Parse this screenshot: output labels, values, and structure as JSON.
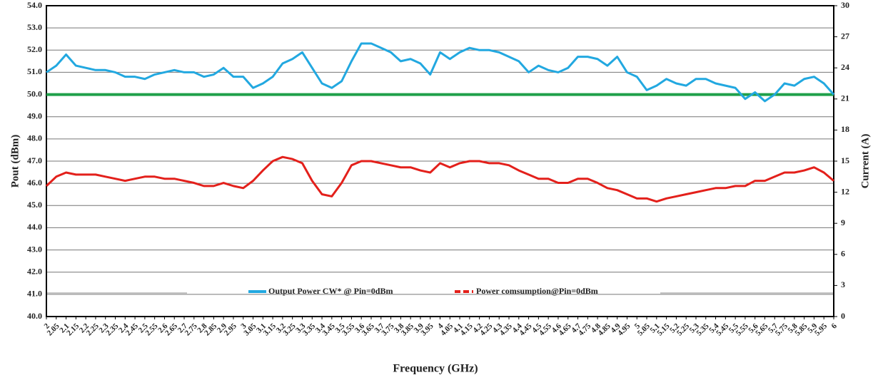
{
  "chart_data": {
    "type": "line",
    "xlabel": "Frequency (GHz)",
    "ylabel": "Pout (dBm)",
    "y2label": "Current (A)",
    "x": [
      2,
      2.05,
      2.1,
      2.15,
      2.2,
      2.25,
      2.3,
      2.35,
      2.4,
      2.45,
      2.5,
      2.55,
      2.6,
      2.65,
      2.7,
      2.75,
      2.8,
      2.85,
      2.9,
      2.95,
      3,
      3.05,
      3.1,
      3.15,
      3.2,
      3.25,
      3.3,
      3.35,
      3.4,
      3.45,
      3.5,
      3.55,
      3.6,
      3.65,
      3.7,
      3.75,
      3.8,
      3.85,
      3.9,
      3.95,
      4,
      4.05,
      4.1,
      4.15,
      4.2,
      4.25,
      4.3,
      4.35,
      4.4,
      4.45,
      4.5,
      4.55,
      4.6,
      4.65,
      4.7,
      4.75,
      4.8,
      4.85,
      4.9,
      4.95,
      5,
      5.05,
      5.1,
      5.15,
      5.2,
      5.25,
      5.3,
      5.35,
      5.4,
      5.45,
      5.5,
      5.55,
      5.6,
      5.65,
      5.7,
      5.75,
      5.8,
      5.85,
      5.9,
      5.95,
      6
    ],
    "xlim": [
      2,
      6
    ],
    "xticks": [
      2,
      2.05,
      2.1,
      2.15,
      2.2,
      2.25,
      2.3,
      2.35,
      2.4,
      2.45,
      2.5,
      2.55,
      2.6,
      2.65,
      2.7,
      2.75,
      2.8,
      2.85,
      2.9,
      2.95,
      3,
      3.05,
      3.1,
      3.15,
      3.2,
      3.25,
      3.3,
      3.35,
      3.4,
      3.45,
      3.5,
      3.55,
      3.6,
      3.65,
      3.7,
      3.75,
      3.8,
      3.85,
      3.9,
      3.95,
      4,
      4.05,
      4.1,
      4.15,
      4.2,
      4.25,
      4.3,
      4.35,
      4.4,
      4.45,
      4.5,
      4.55,
      4.6,
      4.65,
      4.7,
      4.75,
      4.8,
      4.85,
      4.9,
      4.95,
      5,
      5.05,
      5.1,
      5.15,
      5.2,
      5.25,
      5.3,
      5.35,
      5.4,
      5.45,
      5.5,
      5.55,
      5.6,
      5.65,
      5.7,
      5.75,
      5.8,
      5.85,
      5.9,
      5.95,
      6
    ],
    "ylim": [
      40,
      54
    ],
    "yticks": [
      {
        "value": 40,
        "label": "40.0"
      },
      {
        "value": 41,
        "label": "41.0"
      },
      {
        "value": 42,
        "label": "42.0"
      },
      {
        "value": 43,
        "label": "43.0"
      },
      {
        "value": 44,
        "label": "44.0"
      },
      {
        "value": 45,
        "label": "45.0"
      },
      {
        "value": 46,
        "label": "46.0"
      },
      {
        "value": 47,
        "label": "47.0"
      },
      {
        "value": 48,
        "label": "48.0"
      },
      {
        "value": 49,
        "label": "49.0"
      },
      {
        "value": 50,
        "label": "50.0"
      },
      {
        "value": 51,
        "label": "51.0"
      },
      {
        "value": 52,
        "label": "52.0"
      },
      {
        "value": 53,
        "label": "53.0"
      },
      {
        "value": 54,
        "label": "54.0"
      }
    ],
    "y2lim": [
      0,
      30
    ],
    "y2ticks": [
      0,
      3,
      6,
      9,
      12,
      15,
      18,
      21,
      24,
      27,
      30
    ],
    "grid": true,
    "reference": {
      "value": 50,
      "color": "#1fa04a"
    },
    "series": [
      {
        "name": "Output Power CW* @ Pin=0dBm",
        "color": "#22a8e0",
        "values": [
          51.0,
          51.3,
          51.8,
          51.3,
          51.2,
          51.1,
          51.1,
          51.0,
          50.8,
          50.8,
          50.7,
          50.9,
          51.0,
          51.1,
          51.0,
          51.0,
          50.8,
          50.9,
          51.2,
          50.8,
          50.8,
          50.3,
          50.5,
          50.8,
          51.4,
          51.6,
          51.9,
          51.2,
          50.5,
          50.3,
          50.6,
          51.5,
          52.3,
          52.3,
          52.1,
          51.9,
          51.5,
          51.6,
          51.4,
          50.9,
          51.9,
          51.6,
          51.9,
          52.1,
          52.0,
          52.0,
          51.9,
          51.7,
          51.5,
          51.0,
          51.3,
          51.1,
          51.0,
          51.2,
          51.7,
          51.7,
          51.6,
          51.3,
          51.7,
          51.0,
          50.8,
          50.2,
          50.4,
          50.7,
          50.5,
          50.4,
          50.7,
          50.7,
          50.5,
          50.4,
          50.3,
          49.8,
          50.1,
          49.7,
          50.0,
          50.5,
          50.4,
          50.7,
          50.8,
          50.5,
          50.0
        ]
      },
      {
        "name": "Power comsumption@Pin=0dBm",
        "color": "#e3201b",
        "axis": "y2",
        "values": [
          12.6,
          13.5,
          13.9,
          13.7,
          13.7,
          13.7,
          13.5,
          13.3,
          13.1,
          13.3,
          13.5,
          13.5,
          13.3,
          13.3,
          13.1,
          12.9,
          12.6,
          12.6,
          12.9,
          12.6,
          12.4,
          13.1,
          14.1,
          15.0,
          15.4,
          15.2,
          14.8,
          13.1,
          11.8,
          11.6,
          12.9,
          14.6,
          15.0,
          15.0,
          14.8,
          14.6,
          14.4,
          14.4,
          14.1,
          13.9,
          14.8,
          14.4,
          14.8,
          15.0,
          15.0,
          14.8,
          14.8,
          14.6,
          14.1,
          13.7,
          13.3,
          13.3,
          12.9,
          12.9,
          13.3,
          13.3,
          12.9,
          12.4,
          12.2,
          11.8,
          11.4,
          11.4,
          11.1,
          11.4,
          11.6,
          11.8,
          12.0,
          12.2,
          12.4,
          12.4,
          12.6,
          12.6,
          13.1,
          13.1,
          13.5,
          13.9,
          13.9,
          14.1,
          14.4,
          13.9,
          13.1
        ]
      }
    ]
  }
}
